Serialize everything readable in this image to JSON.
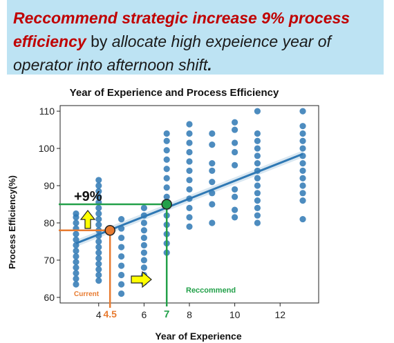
{
  "banner": {
    "highlight_1": "Reccommend strategic increase 9% process efficiency",
    "text_1": " by ",
    "text_2": "allocate high expeience year of operator into afternoon shift",
    "text_3": "."
  },
  "colors": {
    "banner_bg": "#bde3f3",
    "highlight": "#c00000",
    "points": "#2e78b4",
    "regression": "#2e78b4",
    "current": "#e87b30",
    "recommend": "#22a049",
    "arrow": "#ffff00"
  },
  "annotations": {
    "increase": "+9%",
    "current": "Current",
    "current_x": "4.5",
    "recommend": "Reccommend",
    "recommend_x": "7"
  },
  "chart_data": {
    "type": "scatter",
    "title": "Year of Experience and Process Efficiency",
    "xlabel": "Year of Experience",
    "ylabel": "Process Efficiency(%)",
    "xlim": [
      2.3,
      13.7
    ],
    "ylim": [
      58.5,
      111.5
    ],
    "xticks": [
      4,
      6,
      8,
      10,
      12
    ],
    "yticks": [
      60,
      70,
      80,
      90,
      100,
      110
    ],
    "grid": false,
    "columns": [
      {
        "x": 3,
        "y": [
          63.5,
          65,
          66.5,
          68,
          69.5,
          71,
          72.5,
          74,
          75.5,
          77,
          78.5,
          80,
          81.5,
          82.5
        ]
      },
      {
        "x": 4,
        "y": [
          64.5,
          66,
          67.5,
          69,
          70.5,
          72,
          73.5,
          75,
          76.5,
          78,
          79.5,
          81,
          82.5,
          84,
          85.5,
          87,
          88.5,
          90,
          91.5
        ]
      },
      {
        "x": 5,
        "y": [
          61,
          63.5,
          66,
          68.5,
          71,
          73.5,
          76,
          78.5,
          81
        ]
      },
      {
        "x": 6,
        "y": [
          64,
          66,
          68,
          70,
          72,
          74,
          76,
          78,
          80,
          82,
          84
        ]
      },
      {
        "x": 7,
        "y": [
          72,
          74.5,
          77,
          79.5,
          82,
          84.5,
          87,
          89.5,
          92,
          94.5,
          97,
          99.5,
          102,
          104
        ]
      },
      {
        "x": 8,
        "y": [
          79,
          81.5,
          84,
          86.5,
          89,
          91.5,
          94,
          96.5,
          99,
          101.5,
          104,
          106.5
        ]
      },
      {
        "x": 9,
        "y": [
          80,
          85,
          88,
          91,
          94,
          96,
          101,
          104
        ]
      },
      {
        "x": 10,
        "y": [
          81.5,
          83.5,
          87,
          89,
          95.5,
          99,
          101.5,
          105,
          107
        ]
      },
      {
        "x": 11,
        "y": [
          80,
          82,
          84,
          86,
          88,
          90,
          92,
          94,
          96,
          98,
          100,
          102,
          104,
          110
        ]
      },
      {
        "x": 13,
        "y": [
          81,
          86,
          88,
          90,
          92,
          94,
          96,
          98,
          100,
          102,
          104,
          106,
          110
        ]
      }
    ],
    "regression": {
      "x": [
        3,
        13
      ],
      "y": [
        74.5,
        98.5
      ]
    },
    "markers": [
      {
        "label": "Current",
        "x": 4.5,
        "y": 78,
        "color": "#e87b30"
      },
      {
        "label": "Reccommend",
        "x": 7,
        "y": 85,
        "color": "#22a049"
      }
    ]
  }
}
